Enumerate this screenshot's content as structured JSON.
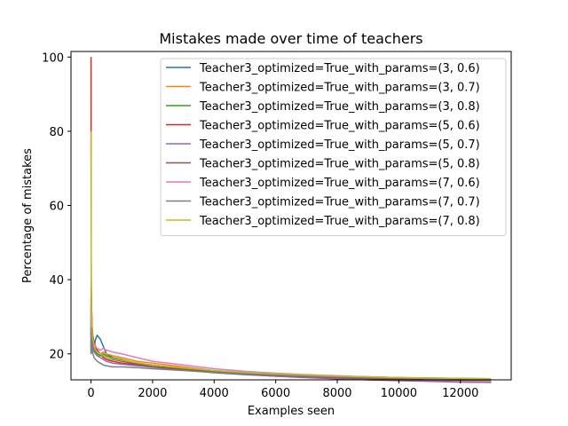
{
  "chart_data": {
    "type": "line",
    "title": "Mistakes made over time of teachers",
    "xlabel": "Examples seen",
    "ylabel": "Percentage of mistakes",
    "xlim": [
      -650,
      13650
    ],
    "ylim": [
      13,
      101.5
    ],
    "xticks": [
      0,
      2000,
      4000,
      6000,
      8000,
      10000,
      12000
    ],
    "yticks": [
      20,
      40,
      60,
      80,
      100
    ],
    "legend_position": "upper right",
    "grid": false,
    "series": [
      {
        "name": "Teacher3_optimized=True_with_params=(3, 0.6)",
        "color": "#1f77b4",
        "x": [
          1,
          5,
          10,
          20,
          40,
          60,
          80,
          100,
          150,
          200,
          300,
          400,
          500,
          700,
          1000,
          1500,
          2000,
          3000,
          4000,
          5000,
          6000,
          7000,
          8000,
          9000,
          10000,
          11000,
          12000,
          13000
        ],
        "y": [
          20,
          36,
          30,
          26,
          24,
          23,
          22.5,
          22,
          24,
          25,
          24,
          22,
          20,
          19,
          18,
          17.5,
          17,
          16,
          15,
          14.5,
          14.3,
          14.1,
          13.9,
          13.7,
          13.5,
          13.4,
          13.3,
          13.2
        ]
      },
      {
        "name": "Teacher3_optimized=True_with_params=(3, 0.7)",
        "color": "#ff7f0e",
        "x": [
          1,
          5,
          10,
          20,
          40,
          60,
          80,
          100,
          150,
          200,
          300,
          400,
          500,
          700,
          1000,
          1500,
          2000,
          3000,
          4000,
          5000,
          6000,
          7000,
          8000,
          9000,
          10000,
          11000,
          12000,
          13000
        ],
        "y": [
          30,
          40,
          34,
          29,
          26,
          24,
          23,
          22,
          21,
          20.5,
          20,
          20.5,
          20,
          19.5,
          19,
          18,
          17.5,
          16.5,
          15.5,
          15,
          14.6,
          14.3,
          14,
          13.8,
          13.6,
          13.4,
          13.3,
          13.2
        ]
      },
      {
        "name": "Teacher3_optimized=True_with_params=(3, 0.8)",
        "color": "#2ca02c",
        "x": [
          1,
          5,
          10,
          20,
          40,
          60,
          80,
          100,
          150,
          200,
          300,
          400,
          500,
          700,
          1000,
          1500,
          2000,
          3000,
          4000,
          5000,
          6000,
          7000,
          8000,
          9000,
          10000,
          11000,
          12000,
          13000
        ],
        "y": [
          25,
          33,
          30,
          27,
          24,
          23,
          22,
          21,
          20.5,
          20,
          19.5,
          20,
          19.5,
          19,
          18.5,
          17.5,
          17,
          16,
          15.2,
          14.8,
          14.5,
          14.2,
          14,
          13.8,
          13.6,
          13.5,
          13.4,
          13.3
        ]
      },
      {
        "name": "Teacher3_optimized=True_with_params=(5, 0.6)",
        "color": "#d62728",
        "x": [
          1,
          3,
          5,
          10,
          20,
          40,
          60,
          80,
          100,
          150,
          200,
          300,
          400,
          500,
          700,
          1000,
          1500,
          2000,
          3000,
          4000,
          5000,
          6000,
          7000,
          8000,
          9000,
          10000,
          11000,
          12000,
          13000
        ],
        "y": [
          100,
          80,
          50,
          38,
          32,
          27,
          25,
          24,
          23,
          22,
          21,
          20,
          19,
          18.5,
          18,
          17.5,
          17,
          16.5,
          15.8,
          15,
          14.5,
          14,
          13.6,
          13.3,
          13,
          12.8,
          12.6,
          12.4,
          12.3
        ]
      },
      {
        "name": "Teacher3_optimized=True_with_params=(5, 0.7)",
        "color": "#9467bd",
        "x": [
          1,
          5,
          10,
          20,
          40,
          60,
          80,
          100,
          150,
          200,
          300,
          400,
          500,
          700,
          1000,
          1500,
          2000,
          3000,
          4000,
          5000,
          6000,
          7000,
          8000,
          9000,
          10000,
          11000,
          12000,
          13000
        ],
        "y": [
          22,
          30,
          27,
          25,
          23,
          22,
          21,
          20.5,
          20,
          19.5,
          19,
          18.5,
          18,
          17.5,
          17.2,
          16.8,
          16.4,
          15.6,
          14.9,
          14.4,
          14,
          13.7,
          13.4,
          13.1,
          12.9,
          12.7,
          12.5,
          12.3
        ]
      },
      {
        "name": "Teacher3_optimized=True_with_params=(5, 0.8)",
        "color": "#8c564b",
        "x": [
          1,
          5,
          10,
          20,
          40,
          60,
          80,
          100,
          150,
          200,
          300,
          400,
          500,
          700,
          1000,
          1500,
          2000,
          3000,
          4000,
          5000,
          6000,
          7000,
          8000,
          9000,
          10000,
          11000,
          12000,
          13000
        ],
        "y": [
          28,
          35,
          31,
          28,
          25,
          23.5,
          22.5,
          22,
          21,
          20.5,
          20,
          19.5,
          19,
          18.5,
          18,
          17.2,
          16.6,
          15.8,
          15,
          14.5,
          14.2,
          13.9,
          13.6,
          13.4,
          13.2,
          13,
          12.9,
          12.8
        ]
      },
      {
        "name": "Teacher3_optimized=True_with_params=(7, 0.6)",
        "color": "#e377c2",
        "x": [
          1,
          5,
          10,
          20,
          40,
          60,
          80,
          100,
          150,
          200,
          300,
          400,
          500,
          700,
          1000,
          1500,
          2000,
          3000,
          4000,
          5000,
          6000,
          7000,
          8000,
          9000,
          10000,
          11000,
          12000,
          13000
        ],
        "y": [
          26,
          34,
          30,
          27,
          25,
          24,
          23,
          22.5,
          22,
          21.5,
          21,
          21.5,
          21,
          20.5,
          20,
          19,
          18,
          17,
          16,
          15.3,
          14.8,
          14.4,
          14.1,
          13.8,
          13.6,
          13.4,
          13.2,
          13.1
        ]
      },
      {
        "name": "Teacher3_optimized=True_with_params=(7, 0.7)",
        "color": "#7f7f7f",
        "x": [
          1,
          5,
          10,
          20,
          40,
          60,
          80,
          100,
          150,
          200,
          300,
          400,
          500,
          700,
          1000,
          1500,
          2000,
          3000,
          4000,
          5000,
          6000,
          7000,
          8000,
          9000,
          10000,
          11000,
          12000,
          13000
        ],
        "y": [
          20,
          27,
          25,
          23,
          21,
          20,
          19.5,
          19,
          18.5,
          18,
          17.5,
          17,
          16.8,
          16.5,
          16.5,
          16.3,
          16,
          15.5,
          15,
          14.6,
          14.3,
          14,
          13.8,
          13.6,
          13.5,
          13.4,
          13.3,
          13.2
        ]
      },
      {
        "name": "Teacher3_optimized=True_with_params=(7, 0.8)",
        "color": "#bcbd22",
        "x": [
          1,
          3,
          5,
          10,
          20,
          40,
          60,
          80,
          100,
          150,
          200,
          300,
          400,
          500,
          700,
          1000,
          1500,
          2000,
          3000,
          4000,
          5000,
          6000,
          7000,
          8000,
          9000,
          10000,
          11000,
          12000,
          13000
        ],
        "y": [
          80,
          60,
          45,
          35,
          30,
          26,
          24,
          23,
          22,
          21,
          20.5,
          20,
          19.5,
          19,
          18.7,
          18.3,
          17.6,
          17,
          16.2,
          15.5,
          15,
          14.6,
          14.3,
          14,
          13.8,
          13.6,
          13.5,
          13.4,
          13.3
        ]
      }
    ]
  }
}
